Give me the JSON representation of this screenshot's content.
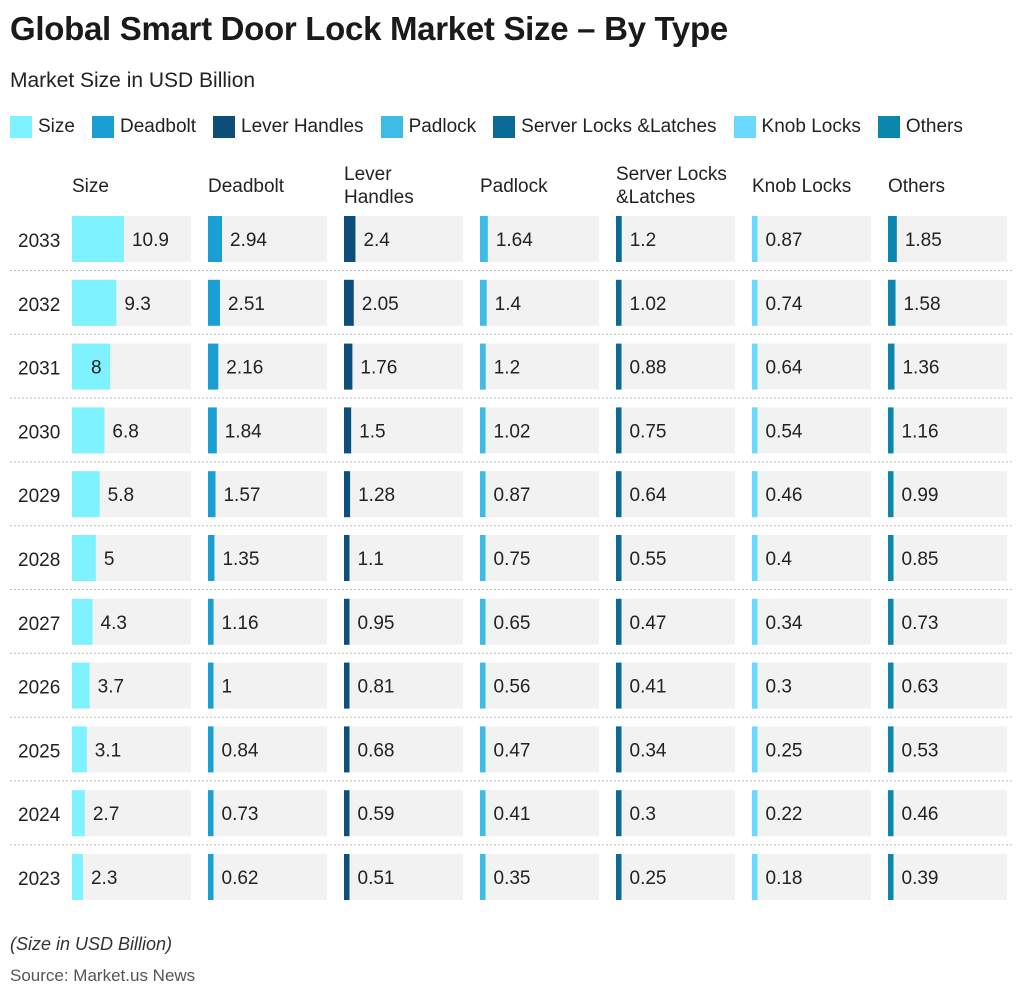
{
  "title": "Global Smart Door Lock Market Size – By Type",
  "subtitle": "Market Size in USD Billion",
  "footnote": "(Size in USD Billion)",
  "source": "Source: Market.us News",
  "chart_data": {
    "type": "bar",
    "layout": "small-multiples-table",
    "categories": [
      "2033",
      "2032",
      "2031",
      "2030",
      "2029",
      "2028",
      "2027",
      "2026",
      "2025",
      "2024",
      "2023"
    ],
    "series": [
      {
        "name": "Size",
        "header": "Size",
        "color": "#7ef2ff",
        "values": [
          10.9,
          9.3,
          8,
          6.8,
          5.8,
          5,
          4.3,
          3.7,
          3.1,
          2.7,
          2.3
        ],
        "labels": [
          "10.9",
          "9.3",
          "8",
          "6.8",
          "5.8",
          "5",
          "4.3",
          "3.7",
          "3.1",
          "2.7",
          "2.3"
        ]
      },
      {
        "name": "Deadbolt",
        "header": "Deadbolt",
        "color": "#1a9fd4",
        "values": [
          2.94,
          2.51,
          2.16,
          1.84,
          1.57,
          1.35,
          1.16,
          1,
          0.84,
          0.73,
          0.62
        ],
        "labels": [
          "2.94",
          "2.51",
          "2.16",
          "1.84",
          "1.57",
          "1.35",
          "1.16",
          "1",
          "0.84",
          "0.73",
          "0.62"
        ]
      },
      {
        "name": "Lever Handles",
        "header": "Lever Handles",
        "color": "#0d4f7a",
        "values": [
          2.4,
          2.05,
          1.76,
          1.5,
          1.28,
          1.1,
          0.95,
          0.81,
          0.68,
          0.59,
          0.51
        ],
        "labels": [
          "2.4",
          "2.05",
          "1.76",
          "1.5",
          "1.28",
          "1.1",
          "0.95",
          "0.81",
          "0.68",
          "0.59",
          "0.51"
        ]
      },
      {
        "name": "Padlock",
        "header": "Padlock",
        "color": "#3fbbe8",
        "values": [
          1.64,
          1.4,
          1.2,
          1.02,
          0.87,
          0.75,
          0.65,
          0.56,
          0.47,
          0.41,
          0.35
        ],
        "labels": [
          "1.64",
          "1.4",
          "1.2",
          "1.02",
          "0.87",
          "0.75",
          "0.65",
          "0.56",
          "0.47",
          "0.41",
          "0.35"
        ]
      },
      {
        "name": "Server Locks &Latches",
        "header": "Server Locks &Latches",
        "color": "#0a6a96",
        "values": [
          1.2,
          1.02,
          0.88,
          0.75,
          0.64,
          0.55,
          0.47,
          0.41,
          0.34,
          0.3,
          0.25
        ],
        "labels": [
          "1.2",
          "1.02",
          "0.88",
          "0.75",
          "0.64",
          "0.55",
          "0.47",
          "0.41",
          "0.34",
          "0.3",
          "0.25"
        ]
      },
      {
        "name": "Knob Locks",
        "header": "Knob Locks",
        "color": "#6ad8ff",
        "values": [
          0.87,
          0.74,
          0.64,
          0.54,
          0.46,
          0.4,
          0.34,
          0.3,
          0.25,
          0.22,
          0.18
        ],
        "labels": [
          "0.87",
          "0.74",
          "0.64",
          "0.54",
          "0.46",
          "0.4",
          "0.34",
          "0.3",
          "0.25",
          "0.22",
          "0.18"
        ]
      },
      {
        "name": "Others",
        "header": "Others",
        "color": "#0b86ad",
        "values": [
          1.85,
          1.58,
          1.36,
          1.16,
          0.99,
          0.85,
          0.73,
          0.63,
          0.53,
          0.46,
          0.39
        ],
        "labels": [
          "1.85",
          "1.58",
          "1.36",
          "1.16",
          "0.99",
          "0.85",
          "0.73",
          "0.63",
          "0.53",
          "0.46",
          "0.39"
        ]
      }
    ],
    "xlim": [
      0,
      44
    ],
    "cell_background_color": "#f2f2f2",
    "row_separator": "dotted",
    "grid": false,
    "legend_position": "top-left"
  }
}
